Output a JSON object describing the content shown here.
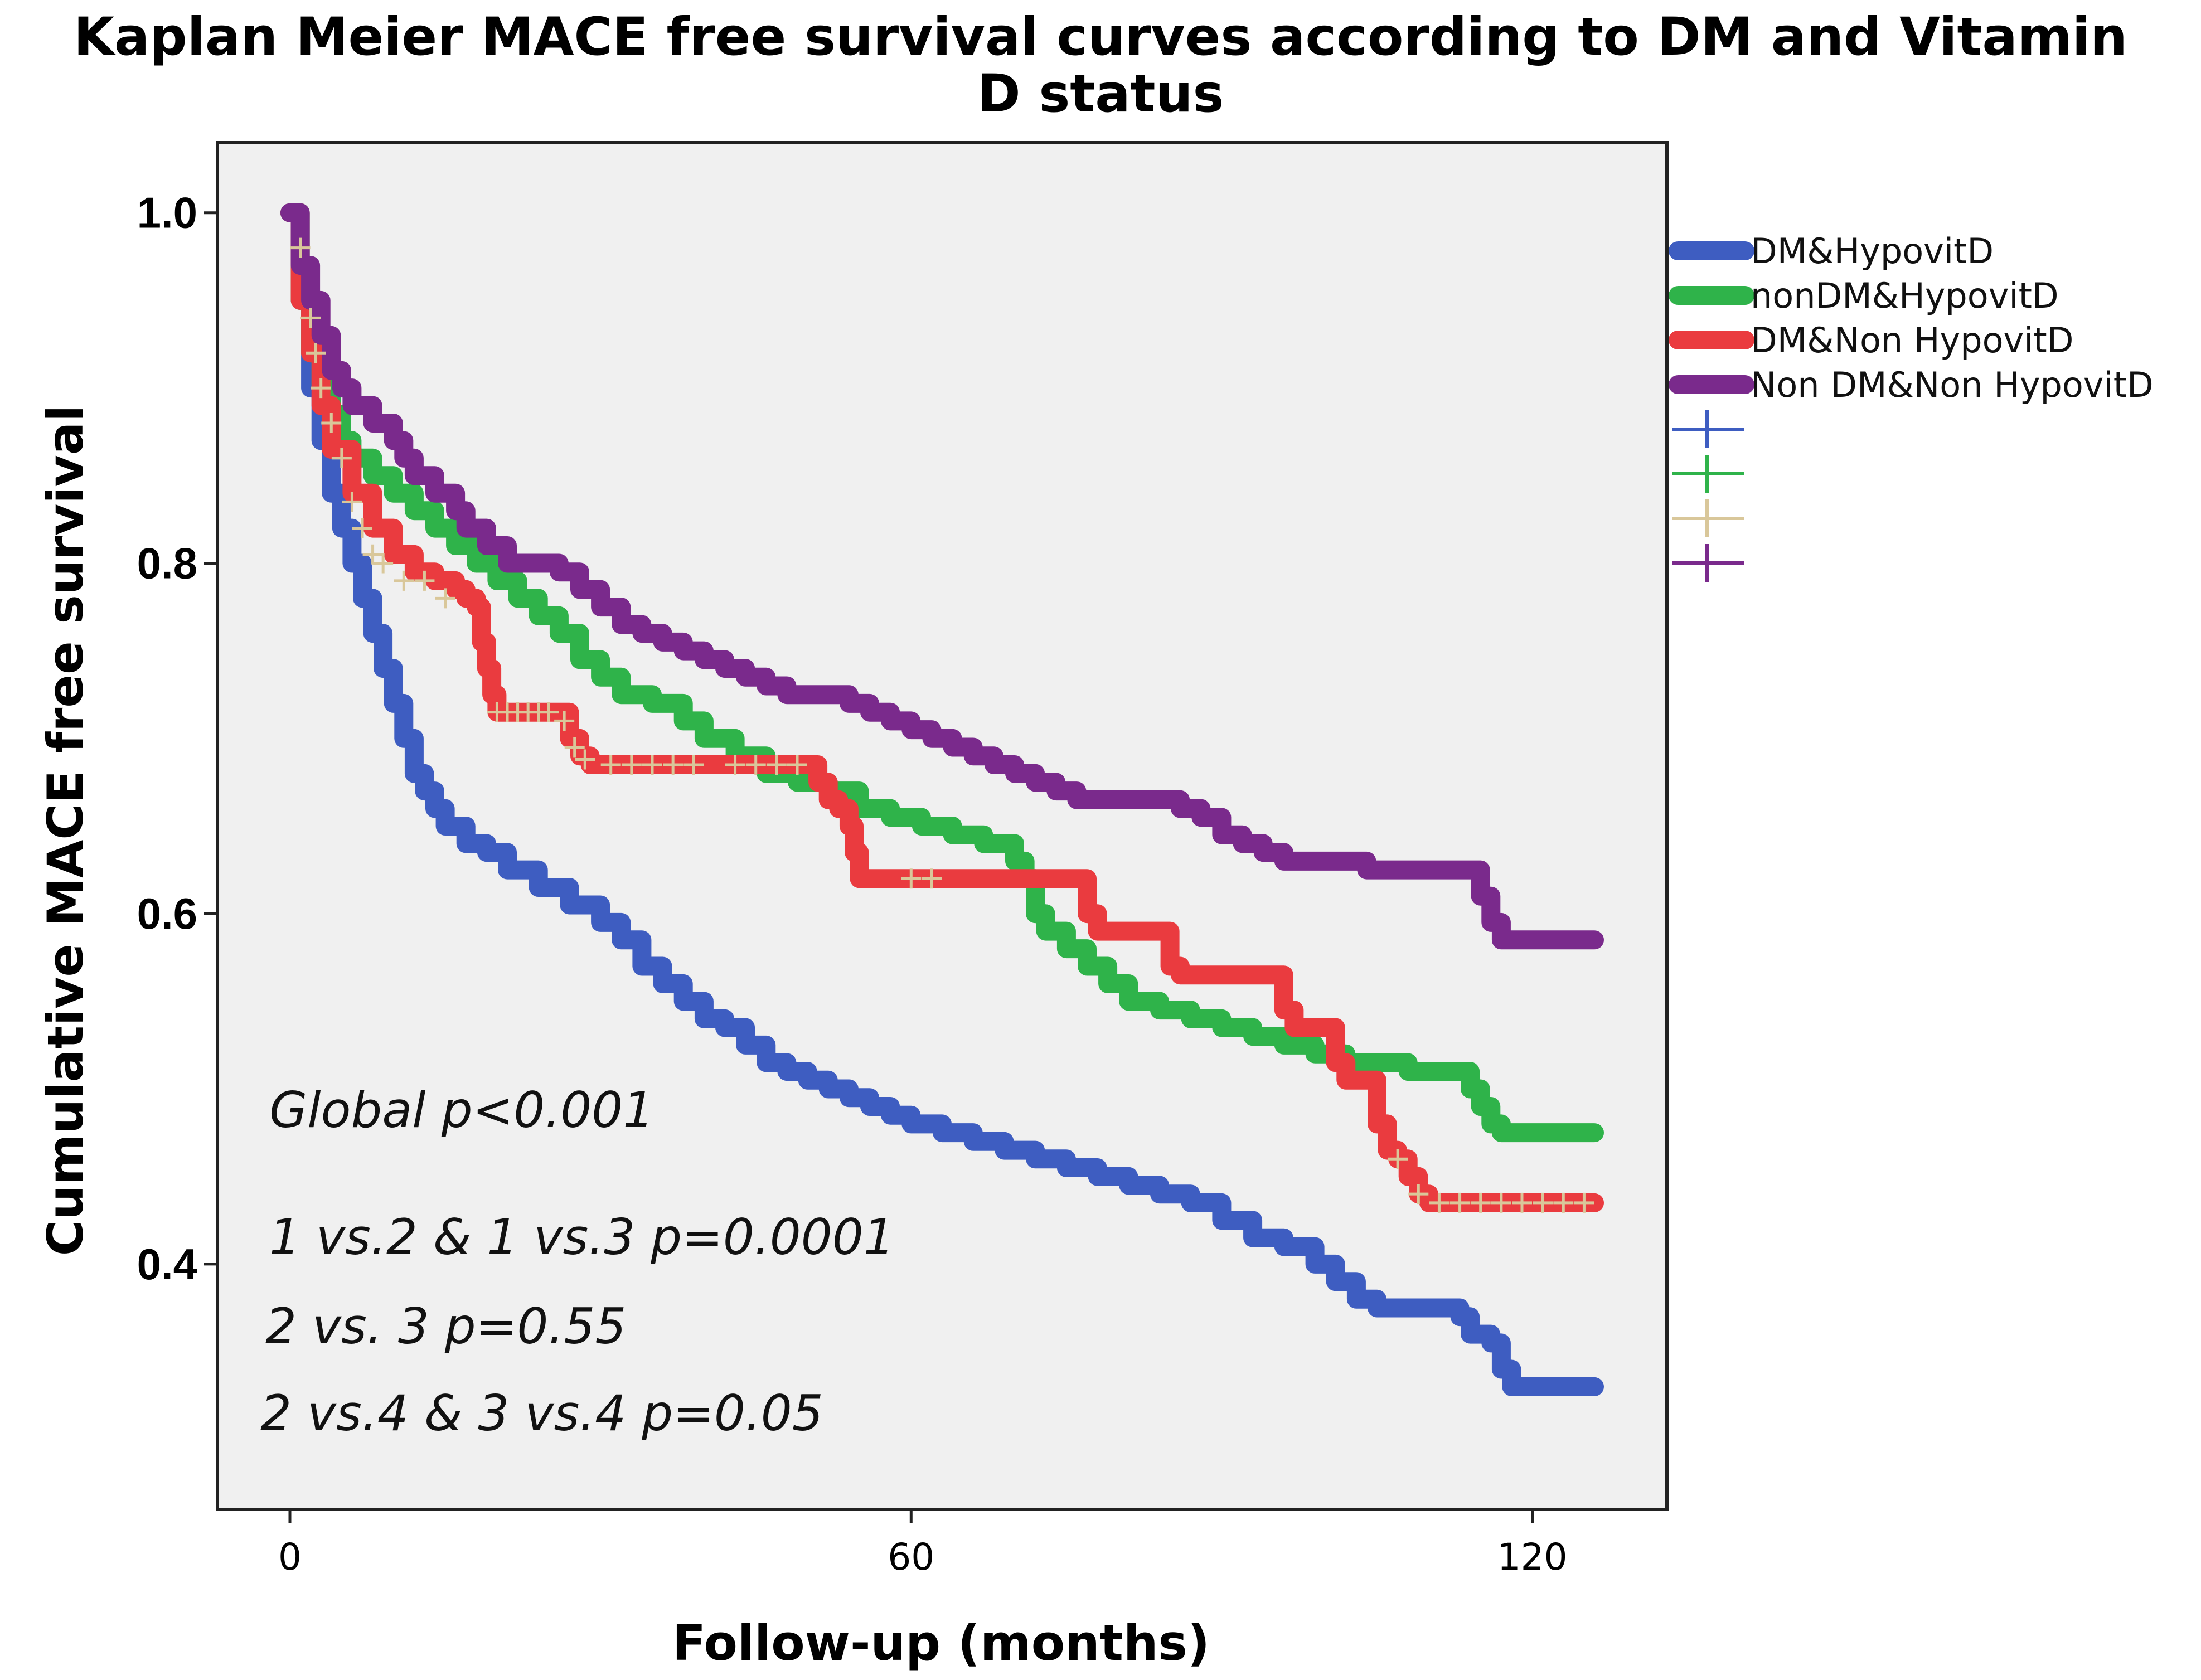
{
  "chart_data": {
    "type": "line",
    "title_lines": [
      "Kaplan Meier MACE free survival curves according to DM and Vitamin",
      "D status"
    ],
    "xlabel": "Follow-up (months)",
    "ylabel": "Cumulative MACE free survival",
    "xlim": [
      -7,
      133
    ],
    "ylim": [
      0.26,
      1.04
    ],
    "xticks": [
      0,
      60,
      120
    ],
    "xtick_labels": [
      "0",
      "60",
      "120"
    ],
    "yticks": [
      0.4,
      0.6,
      0.8,
      1.0
    ],
    "ytick_labels": [
      "0.4",
      "0.6",
      "0.8",
      "1.0"
    ],
    "plot_background": "#f0f0f0",
    "grid": false,
    "legend_position": "right",
    "censor_marker_color": "#d9c79a",
    "series": [
      {
        "name": "DM&HypovitD",
        "color": "#3e5dc1",
        "points": [
          [
            0,
            1.0
          ],
          [
            1,
            0.95
          ],
          [
            2,
            0.9
          ],
          [
            3,
            0.87
          ],
          [
            4,
            0.84
          ],
          [
            5,
            0.82
          ],
          [
            6,
            0.8
          ],
          [
            7,
            0.78
          ],
          [
            8,
            0.76
          ],
          [
            9,
            0.74
          ],
          [
            10,
            0.72
          ],
          [
            11,
            0.7
          ],
          [
            12,
            0.68
          ],
          [
            13,
            0.67
          ],
          [
            14,
            0.66
          ],
          [
            15,
            0.65
          ],
          [
            17,
            0.64
          ],
          [
            19,
            0.635
          ],
          [
            21,
            0.625
          ],
          [
            24,
            0.615
          ],
          [
            27,
            0.605
          ],
          [
            30,
            0.595
          ],
          [
            32,
            0.585
          ],
          [
            34,
            0.57
          ],
          [
            36,
            0.56
          ],
          [
            38,
            0.55
          ],
          [
            40,
            0.54
          ],
          [
            42,
            0.535
          ],
          [
            44,
            0.525
          ],
          [
            46,
            0.515
          ],
          [
            48,
            0.51
          ],
          [
            50,
            0.505
          ],
          [
            52,
            0.5
          ],
          [
            54,
            0.495
          ],
          [
            56,
            0.49
          ],
          [
            58,
            0.485
          ],
          [
            60,
            0.48
          ],
          [
            63,
            0.475
          ],
          [
            66,
            0.47
          ],
          [
            69,
            0.465
          ],
          [
            72,
            0.46
          ],
          [
            75,
            0.455
          ],
          [
            78,
            0.45
          ],
          [
            81,
            0.445
          ],
          [
            84,
            0.44
          ],
          [
            87,
            0.435
          ],
          [
            90,
            0.425
          ],
          [
            93,
            0.415
          ],
          [
            96,
            0.41
          ],
          [
            99,
            0.4
          ],
          [
            101,
            0.39
          ],
          [
            103,
            0.38
          ],
          [
            105,
            0.375
          ],
          [
            109,
            0.375
          ],
          [
            112,
            0.375
          ],
          [
            113,
            0.37
          ],
          [
            114,
            0.36
          ],
          [
            116,
            0.355
          ],
          [
            117,
            0.34
          ],
          [
            118,
            0.33
          ],
          [
            126,
            0.33
          ]
        ]
      },
      {
        "name": "nonDM&HypovitD",
        "color": "#2fb34a",
        "points": [
          [
            0,
            1.0
          ],
          [
            1,
            0.95
          ],
          [
            2,
            0.92
          ],
          [
            3,
            0.9
          ],
          [
            4,
            0.885
          ],
          [
            5,
            0.87
          ],
          [
            6,
            0.86
          ],
          [
            8,
            0.85
          ],
          [
            10,
            0.84
          ],
          [
            12,
            0.83
          ],
          [
            14,
            0.82
          ],
          [
            16,
            0.81
          ],
          [
            18,
            0.8
          ],
          [
            20,
            0.79
          ],
          [
            22,
            0.78
          ],
          [
            24,
            0.77
          ],
          [
            26,
            0.76
          ],
          [
            28,
            0.745
          ],
          [
            30,
            0.735
          ],
          [
            32,
            0.725
          ],
          [
            35,
            0.72
          ],
          [
            38,
            0.71
          ],
          [
            40,
            0.7
          ],
          [
            43,
            0.69
          ],
          [
            46,
            0.68
          ],
          [
            49,
            0.675
          ],
          [
            52,
            0.67
          ],
          [
            55,
            0.66
          ],
          [
            58,
            0.655
          ],
          [
            61,
            0.65
          ],
          [
            64,
            0.645
          ],
          [
            67,
            0.64
          ],
          [
            70,
            0.63
          ],
          [
            71,
            0.62
          ],
          [
            72,
            0.6
          ],
          [
            73,
            0.59
          ],
          [
            75,
            0.58
          ],
          [
            77,
            0.57
          ],
          [
            79,
            0.56
          ],
          [
            81,
            0.55
          ],
          [
            84,
            0.545
          ],
          [
            87,
            0.54
          ],
          [
            90,
            0.535
          ],
          [
            93,
            0.53
          ],
          [
            96,
            0.525
          ],
          [
            99,
            0.52
          ],
          [
            102,
            0.515
          ],
          [
            105,
            0.515
          ],
          [
            108,
            0.51
          ],
          [
            111,
            0.51
          ],
          [
            114,
            0.5
          ],
          [
            115,
            0.49
          ],
          [
            116,
            0.48
          ],
          [
            117,
            0.475
          ],
          [
            126,
            0.475
          ]
        ]
      },
      {
        "name": "DM&Non HypovitD",
        "color": "#ea3b3f",
        "points": [
          [
            0,
            1.0
          ],
          [
            1,
            0.95
          ],
          [
            2,
            0.92
          ],
          [
            3,
            0.89
          ],
          [
            4,
            0.865
          ],
          [
            6,
            0.84
          ],
          [
            8,
            0.82
          ],
          [
            10,
            0.805
          ],
          [
            12,
            0.795
          ],
          [
            14,
            0.79
          ],
          [
            16,
            0.785
          ],
          [
            17,
            0.78
          ],
          [
            18,
            0.775
          ],
          [
            18.5,
            0.755
          ],
          [
            19,
            0.74
          ],
          [
            19.5,
            0.725
          ],
          [
            20,
            0.715
          ],
          [
            26,
            0.715
          ],
          [
            27,
            0.7
          ],
          [
            28,
            0.69
          ],
          [
            29,
            0.685
          ],
          [
            50,
            0.685
          ],
          [
            51,
            0.675
          ],
          [
            52,
            0.665
          ],
          [
            53,
            0.66
          ],
          [
            54,
            0.65
          ],
          [
            54.5,
            0.635
          ],
          [
            55,
            0.62
          ],
          [
            76,
            0.62
          ],
          [
            77,
            0.6
          ],
          [
            78,
            0.59
          ],
          [
            84,
            0.59
          ],
          [
            85,
            0.57
          ],
          [
            86,
            0.565
          ],
          [
            95,
            0.565
          ],
          [
            96,
            0.545
          ],
          [
            97,
            0.535
          ],
          [
            100,
            0.535
          ],
          [
            101,
            0.515
          ],
          [
            102,
            0.505
          ],
          [
            104,
            0.505
          ],
          [
            105,
            0.48
          ],
          [
            106,
            0.465
          ],
          [
            107,
            0.46
          ],
          [
            108,
            0.45
          ],
          [
            109,
            0.44
          ],
          [
            110,
            0.435
          ],
          [
            126,
            0.435
          ]
        ]
      },
      {
        "name": "Non DM&Non HypovitD",
        "color": "#7a2a8c",
        "points": [
          [
            0,
            1.0
          ],
          [
            1,
            0.97
          ],
          [
            2,
            0.95
          ],
          [
            3,
            0.93
          ],
          [
            4,
            0.91
          ],
          [
            5,
            0.9
          ],
          [
            6,
            0.89
          ],
          [
            8,
            0.88
          ],
          [
            10,
            0.87
          ],
          [
            11,
            0.86
          ],
          [
            12,
            0.85
          ],
          [
            14,
            0.84
          ],
          [
            16,
            0.83
          ],
          [
            17,
            0.82
          ],
          [
            19,
            0.81
          ],
          [
            21,
            0.8
          ],
          [
            23,
            0.8
          ],
          [
            26,
            0.795
          ],
          [
            28,
            0.785
          ],
          [
            30,
            0.775
          ],
          [
            32,
            0.765
          ],
          [
            34,
            0.76
          ],
          [
            36,
            0.755
          ],
          [
            38,
            0.75
          ],
          [
            40,
            0.745
          ],
          [
            42,
            0.74
          ],
          [
            44,
            0.735
          ],
          [
            46,
            0.73
          ],
          [
            48,
            0.725
          ],
          [
            50,
            0.725
          ],
          [
            52,
            0.725
          ],
          [
            54,
            0.72
          ],
          [
            56,
            0.715
          ],
          [
            58,
            0.71
          ],
          [
            60,
            0.705
          ],
          [
            62,
            0.7
          ],
          [
            64,
            0.695
          ],
          [
            66,
            0.69
          ],
          [
            68,
            0.685
          ],
          [
            70,
            0.68
          ],
          [
            72,
            0.675
          ],
          [
            74,
            0.67
          ],
          [
            76,
            0.665
          ],
          [
            80,
            0.665
          ],
          [
            84,
            0.665
          ],
          [
            86,
            0.66
          ],
          [
            88,
            0.655
          ],
          [
            90,
            0.645
          ],
          [
            92,
            0.64
          ],
          [
            94,
            0.635
          ],
          [
            96,
            0.63
          ],
          [
            100,
            0.63
          ],
          [
            104,
            0.625
          ],
          [
            110,
            0.625
          ],
          [
            114,
            0.625
          ],
          [
            115,
            0.61
          ],
          [
            116,
            0.595
          ],
          [
            117,
            0.585
          ],
          [
            126,
            0.585
          ]
        ]
      }
    ],
    "censor_ticks": [
      {
        "series": "DM&Non HypovitD",
        "points": [
          [
            1,
            0.98
          ],
          [
            2,
            0.94
          ],
          [
            2.5,
            0.92
          ],
          [
            3,
            0.9
          ],
          [
            4,
            0.88
          ],
          [
            5,
            0.86
          ],
          [
            6,
            0.835
          ],
          [
            7,
            0.82
          ],
          [
            8,
            0.805
          ],
          [
            9,
            0.8
          ],
          [
            11,
            0.79
          ],
          [
            13,
            0.79
          ],
          [
            15,
            0.78
          ],
          [
            20,
            0.715
          ],
          [
            21,
            0.715
          ],
          [
            22,
            0.715
          ],
          [
            23,
            0.715
          ],
          [
            24,
            0.715
          ],
          [
            25,
            0.715
          ],
          [
            26.5,
            0.71
          ],
          [
            27.5,
            0.695
          ],
          [
            28.5,
            0.688
          ],
          [
            31,
            0.685
          ],
          [
            33,
            0.685
          ],
          [
            35,
            0.685
          ],
          [
            37,
            0.685
          ],
          [
            39,
            0.685
          ],
          [
            43,
            0.685
          ],
          [
            45,
            0.685
          ],
          [
            47,
            0.685
          ],
          [
            49,
            0.685
          ],
          [
            60,
            0.62
          ],
          [
            62,
            0.62
          ],
          [
            107,
            0.46
          ],
          [
            109,
            0.44
          ],
          [
            111,
            0.435
          ],
          [
            113,
            0.435
          ],
          [
            115,
            0.435
          ],
          [
            117,
            0.435
          ],
          [
            119,
            0.435
          ],
          [
            121,
            0.435
          ],
          [
            123,
            0.435
          ],
          [
            125,
            0.435
          ]
        ]
      }
    ],
    "legend": {
      "line_entries": [
        "DM&HypovitD",
        "nonDM&HypovitD",
        "DM&Non HypovitD",
        "Non DM&Non HypovitD"
      ],
      "marker_entry_colors": [
        "#3e5dc1",
        "#2fb34a",
        "#d9c79a",
        "#7a2a8c"
      ]
    },
    "annotations": [
      "Global p<0.001",
      "1 vs.2 & 1 vs.3 p=0.0001",
      "2 vs. 3 p=0.55",
      "2 vs.4 & 3 vs.4 p=0.05"
    ]
  }
}
